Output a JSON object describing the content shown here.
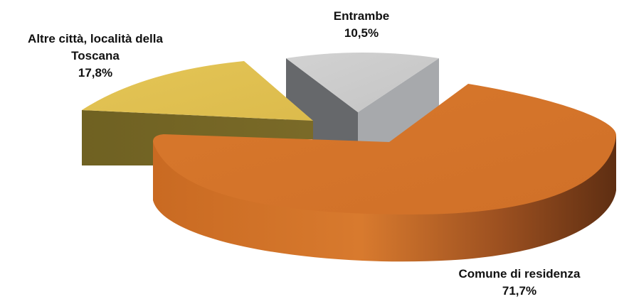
{
  "chart_data": {
    "type": "pie",
    "style": "3d-exploded",
    "slices": [
      {
        "label": "Comune di residenza",
        "value": 71.7,
        "value_label": "71,7%",
        "color": "#d4762b"
      },
      {
        "label": "Altre città, località della Toscana",
        "value": 17.8,
        "value_label": "17,8%",
        "color": "#e2c152"
      },
      {
        "label": "Entrambe",
        "value": 10.5,
        "value_label": "10,5%",
        "color": "#c9c9c9"
      }
    ],
    "legend": "none"
  },
  "labels": {
    "comune_line1": "Comune di residenza",
    "comune_value": "71,7%",
    "altre_line1": "Altre città, località della",
    "altre_line2": "Toscana",
    "altre_value": "17,8%",
    "entrambe_line1": "Entrambe",
    "entrambe_value": "10,5%"
  }
}
